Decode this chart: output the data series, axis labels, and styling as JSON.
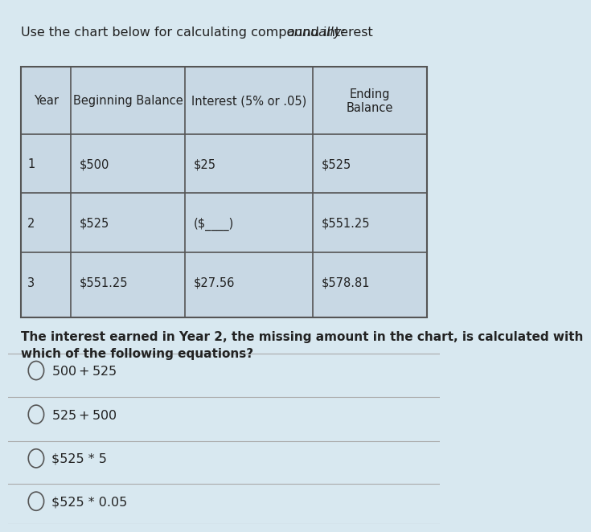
{
  "title": "Use the chart below for calculating compound interest annually:",
  "title_italic_word": "annually:",
  "table_headers": [
    "Year",
    "Beginning Balance",
    "Interest (5% or .05)",
    "Ending\nBalance"
  ],
  "table_rows": [
    [
      "1",
      "$500",
      "$25",
      "$525"
    ],
    [
      "2",
      "$525",
      "($____)",
      "$551.25"
    ],
    [
      "3",
      "$551.25",
      "$27.56",
      "$578.81"
    ]
  ],
  "question_text": "The interest earned in Year 2, the missing amount in the chart, is calculated with\nwhich of the following equations?",
  "options": [
    "$500 + $525",
    "$525 + $500",
    "$525 · 5",
    "$525 · 0.05"
  ],
  "options_display": [
    "$500 + $525",
    "$525 + $500",
    "$525 * 5",
    "$525 * 0.05"
  ],
  "bg_color": "#d8e8f0",
  "table_bg": "#c8d8e4",
  "table_border_color": "#555555",
  "text_color": "#222222",
  "option_divider_color": "#aaaaaa"
}
